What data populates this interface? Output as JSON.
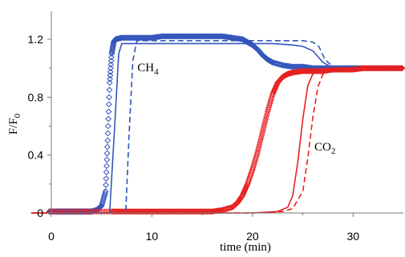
{
  "chart_data": {
    "type": "scatter",
    "xlabel": "time (min)",
    "ylabel_main": "F/F",
    "ylabel_sub": "0",
    "xlim": [
      -2,
      35
    ],
    "ylim": [
      -0.02,
      1.34
    ],
    "xticks": [
      0,
      10,
      20,
      30
    ],
    "yticks": [
      0,
      0.4,
      0.8,
      1.2
    ],
    "ytick_labels": [
      "0",
      "0.4",
      "0.8",
      "1.2"
    ],
    "xtick_labels": [
      "0",
      "10",
      "20",
      "30"
    ],
    "grid": false,
    "annotations": [
      {
        "main": "CH",
        "sub": "4",
        "x": 9.6,
        "y": 0.98
      },
      {
        "main": "CO",
        "sub": "2",
        "x": 27.2,
        "y": 0.43
      }
    ],
    "colors": {
      "CH4": "#3355bb",
      "CO2": "#e62020"
    },
    "series": [
      {
        "kind": "markers",
        "color": "#3355bb",
        "marker": "diamond",
        "x": [
          -0.2,
          0.5,
          1,
          1.5,
          2,
          2.5,
          3,
          3.5,
          4,
          4.5,
          5,
          5.4,
          5.6,
          5.8,
          6,
          6.2,
          6.4,
          7,
          8,
          9,
          10,
          11,
          12,
          13,
          14,
          15,
          16,
          17,
          18,
          19,
          19.5,
          20,
          20.5,
          21,
          21.5,
          22,
          23,
          24,
          25,
          26,
          27,
          28,
          29,
          30,
          31,
          32,
          33,
          34,
          35
        ],
        "y": [
          0.01,
          0.01,
          0.01,
          0.01,
          0.01,
          0.01,
          0.01,
          0.01,
          0.01,
          0.02,
          0.05,
          0.15,
          0.5,
          0.9,
          1.1,
          1.18,
          1.2,
          1.21,
          1.21,
          1.21,
          1.21,
          1.22,
          1.22,
          1.22,
          1.22,
          1.22,
          1.22,
          1.22,
          1.21,
          1.2,
          1.18,
          1.16,
          1.13,
          1.09,
          1.06,
          1.04,
          1.02,
          1.01,
          1.01,
          1.0,
          1.0,
          1.0,
          1.0,
          1.0,
          1.0,
          1.0,
          1.0,
          1.0,
          1.0
        ]
      },
      {
        "kind": "markers",
        "color": "#e62020",
        "marker": "diamond",
        "x": [
          -0.2,
          2,
          4,
          6,
          7,
          8,
          9,
          10,
          11,
          12,
          13,
          14,
          15,
          16,
          17,
          18,
          18.5,
          19,
          19.5,
          20,
          20.5,
          21,
          21.5,
          22,
          22.5,
          23,
          23.5,
          24,
          25,
          26,
          27,
          28,
          29,
          30,
          31,
          32,
          33,
          34,
          35
        ],
        "y": [
          0.01,
          0.01,
          0.01,
          0.01,
          0.01,
          0.01,
          0.01,
          0.01,
          0.01,
          0.01,
          0.01,
          0.01,
          0.01,
          0.01,
          0.02,
          0.04,
          0.07,
          0.12,
          0.2,
          0.3,
          0.42,
          0.56,
          0.7,
          0.82,
          0.9,
          0.94,
          0.96,
          0.97,
          0.98,
          0.98,
          0.98,
          0.99,
          0.99,
          0.99,
          1.0,
          1.0,
          1.0,
          1.0,
          1.0
        ]
      },
      {
        "kind": "line",
        "style": "solid",
        "color": "#3355bb",
        "x": [
          -2,
          5.8,
          6.3,
          6.7,
          7,
          10,
          15,
          20,
          22,
          24,
          25,
          26,
          27,
          28,
          30,
          35
        ],
        "y": [
          0,
          0,
          0.6,
          1.1,
          1.17,
          1.17,
          1.17,
          1.17,
          1.17,
          1.16,
          1.15,
          1.12,
          1.04,
          1.0,
          1.0,
          1.0
        ]
      },
      {
        "kind": "line",
        "style": "dashed",
        "color": "#3355bb",
        "x": [
          -2,
          7.4,
          7.7,
          8.1,
          8.5,
          10,
          15,
          20,
          24,
          25,
          26,
          26.6,
          27.2,
          28,
          30,
          35
        ],
        "y": [
          0,
          0,
          0.5,
          1.05,
          1.19,
          1.19,
          1.19,
          1.19,
          1.19,
          1.19,
          1.18,
          1.15,
          1.06,
          1.01,
          1.0,
          1.0
        ]
      },
      {
        "kind": "line",
        "style": "solid",
        "color": "#e62020",
        "x": [
          -2,
          10,
          15,
          20,
          22.5,
          23.5,
          24,
          24.5,
          25,
          25.5,
          26,
          26.5,
          27,
          28,
          30,
          35
        ],
        "y": [
          0,
          0,
          0,
          0,
          0.01,
          0.04,
          0.12,
          0.35,
          0.65,
          0.88,
          0.96,
          0.98,
          0.99,
          1.0,
          1.0,
          1.0
        ]
      },
      {
        "kind": "line",
        "style": "dashed",
        "color": "#e62020",
        "x": [
          -2,
          10,
          15,
          20,
          23,
          24,
          25,
          25.5,
          26,
          26.5,
          27,
          27.5,
          28,
          29,
          30,
          35
        ],
        "y": [
          0,
          0,
          0,
          0,
          0.01,
          0.03,
          0.15,
          0.38,
          0.66,
          0.87,
          0.96,
          0.98,
          0.99,
          1.0,
          1.0,
          1.0
        ]
      }
    ]
  }
}
